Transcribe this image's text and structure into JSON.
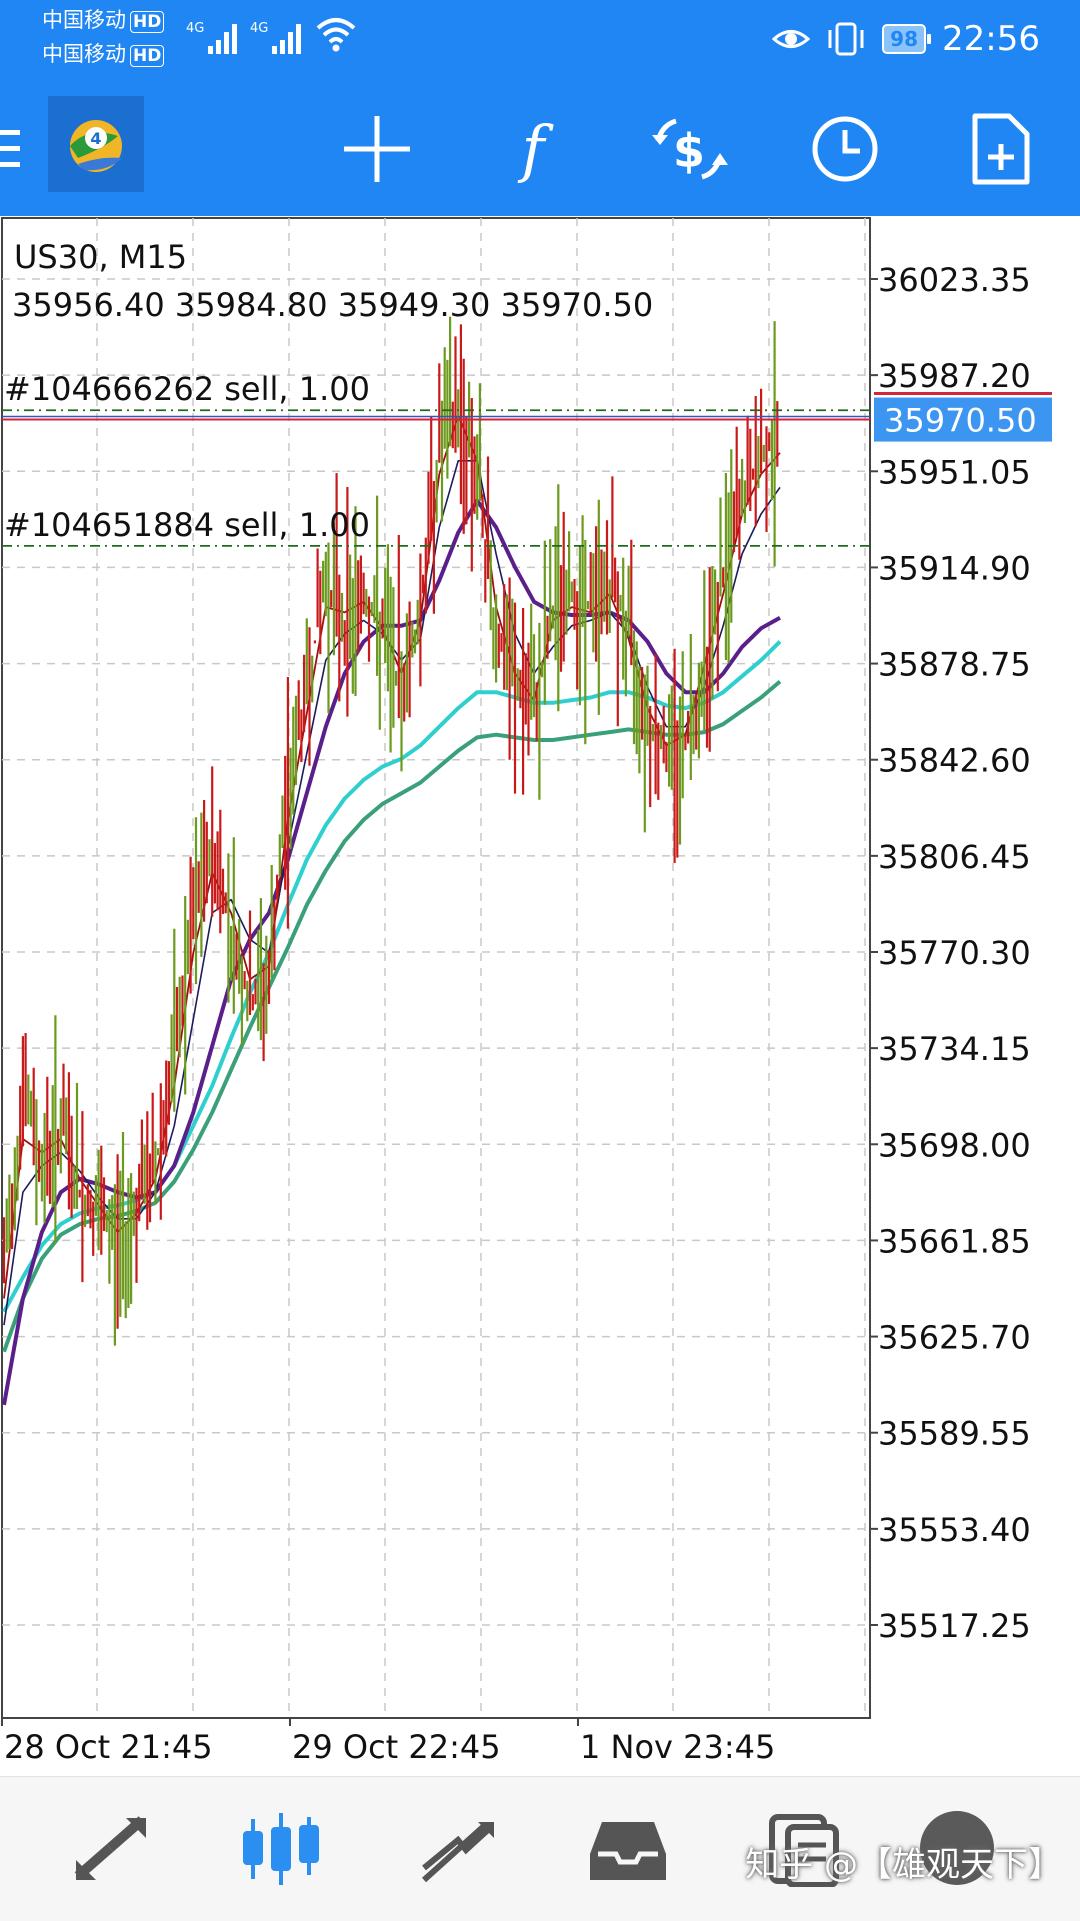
{
  "status_bar": {
    "carrier1": "中国移动",
    "carrier2": "中国移动",
    "hd": "HD",
    "net1": "4G",
    "net2": "4G",
    "battery": "98",
    "time": "22:56"
  },
  "toolbar": {
    "icons": [
      "menu-icon",
      "mt4-logo",
      "crosshair-icon",
      "indicators-icon",
      "trade-icon",
      "timeframe-icon",
      "new-order-icon"
    ]
  },
  "chart": {
    "symbol_period": "US30, M15",
    "ohlc": "35956.40 35984.80 35949.30 35970.50",
    "orders": [
      {
        "label": "#104666262 sell, 1.00",
        "price": 35974.0
      },
      {
        "label": "#104651884 sell, 1.00",
        "price": 35923.0
      }
    ],
    "current_price": "35970.50",
    "current_price_value": 35970.5,
    "price_labels": [
      "36023.35",
      "35987.20",
      "35951.05",
      "35914.90",
      "35878.75",
      "35842.60",
      "35806.45",
      "35770.30",
      "35734.15",
      "35698.00",
      "35661.85",
      "35625.70",
      "35589.55",
      "35553.40",
      "35517.25"
    ],
    "time_labels": [
      "28 Oct 21:45",
      "29 Oct 22:45",
      "1 Nov 23:45"
    ],
    "colors": {
      "up": "#6b9a1e",
      "down": "#c91a1a",
      "price_line": "#d0283a",
      "order_line": "#1e6b1e",
      "ma_fast": "#9e1010",
      "ma_mid": "#1c1c5e",
      "ma_slow": "#5a1f8a",
      "ma_cyan": "#2fcfcf",
      "ma_green": "#3aa07a",
      "badge": "#3c95f0"
    }
  },
  "chart_data": {
    "type": "line",
    "title": "US30, M15",
    "ylim": [
      35480,
      36050
    ],
    "grid": true,
    "x_ticks": [
      "28 Oct 21:45",
      "29 Oct 22:45",
      "1 Nov 23:45"
    ],
    "series_close": [
      35650,
      35720,
      35690,
      35705,
      35680,
      35670,
      35660,
      35675,
      35690,
      35730,
      35780,
      35810,
      35780,
      35750,
      35760,
      35830,
      35870,
      35910,
      35895,
      35905,
      35890,
      35870,
      35900,
      35960,
      35975,
      35950,
      35890,
      35870,
      35860,
      35900,
      35905,
      35900,
      35910,
      35890,
      35860,
      35845,
      35850,
      35880,
      35910,
      35940,
      35955,
      35970.5
    ],
    "ma_fast": [
      35640,
      35700,
      35695,
      35700,
      35685,
      35675,
      35665,
      35672,
      35685,
      35720,
      35770,
      35800,
      35785,
      35760,
      35765,
      35820,
      35860,
      35900,
      35898,
      35902,
      35892,
      35875,
      35895,
      35950,
      35972,
      35955,
      35900,
      35875,
      35865,
      35895,
      35900,
      35898,
      35905,
      35888,
      35862,
      35848,
      35852,
      35878,
      35905,
      35935,
      35950,
      35958
    ],
    "ma_mid": [
      35630,
      35680,
      35690,
      35695,
      35688,
      35678,
      35670,
      35670,
      35680,
      35705,
      35745,
      35785,
      35790,
      35775,
      35770,
      35810,
      35845,
      35880,
      35890,
      35895,
      35890,
      35880,
      35888,
      35930,
      35955,
      35955,
      35920,
      35890,
      35875,
      35885,
      35893,
      35895,
      35898,
      35890,
      35870,
      35855,
      35855,
      35870,
      35893,
      35920,
      35935,
      35945
    ],
    "ma_slow": [
      35600,
      35640,
      35665,
      35680,
      35685,
      35683,
      35680,
      35678,
      35680,
      35690,
      35710,
      35735,
      35760,
      35775,
      35785,
      35805,
      35830,
      35855,
      35875,
      35887,
      35893,
      35893,
      35895,
      35910,
      35928,
      35940,
      35930,
      35915,
      35902,
      35898,
      35897,
      35897,
      35898,
      35895,
      35887,
      35875,
      35868,
      35868,
      35875,
      35885,
      35892,
      35896
    ],
    "ma_cyan": [
      35635,
      35648,
      35660,
      35668,
      35672,
      35674,
      35675,
      35677,
      35680,
      35690,
      35705,
      35720,
      35738,
      35755,
      35770,
      35788,
      35805,
      35818,
      35828,
      35835,
      35840,
      35843,
      35848,
      35855,
      35862,
      35868,
      35868,
      35866,
      35864,
      35864,
      35865,
      35866,
      35868,
      35868,
      35866,
      35863,
      35862,
      35864,
      35868,
      35874,
      35880,
      35887
    ],
    "ma_green": [
      35620,
      35640,
      35655,
      35664,
      35668,
      35670,
      35671,
      35673,
      35676,
      35684,
      35696,
      35710,
      35726,
      35742,
      35757,
      35772,
      35788,
      35801,
      35812,
      35820,
      35826,
      35830,
      35834,
      35840,
      35846,
      35851,
      35852,
      35851,
      35850,
      35850,
      35851,
      35852,
      35853,
      35854,
      35853,
      35852,
      35852,
      35853,
      35856,
      35861,
      35866,
      35872
    ]
  },
  "bottom_nav": {
    "icons": [
      "quotes-icon",
      "chart-icon",
      "trade-icon",
      "history-icon",
      "messages-icon",
      "settings-icon"
    ],
    "watermark": "知乎 @【雄观天下】"
  }
}
